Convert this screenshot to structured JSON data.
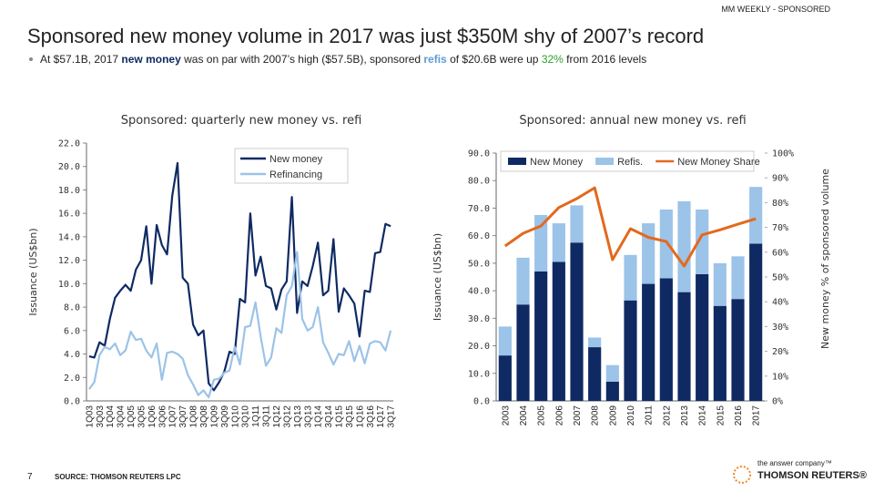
{
  "header": "MM WEEKLY - SPONSORED",
  "title": "Sponsored new money volume in 2017 was just $350M shy of 2007’s record",
  "bullet": [
    "At $57.1B, 2017 ",
    "new money",
    " was on par with 2007’s high ($57.5B), sponsored ",
    "refis",
    " of $20.6B were up ",
    "32%",
    " from 2016 levels"
  ],
  "chart_data": [
    {
      "type": "line",
      "title": "Sponsored: quarterly new money vs. refi",
      "y_label": "Issuance (US$bn)",
      "categories": [
        "1Q03",
        null,
        "3Q03",
        null,
        "1Q04",
        null,
        "3Q04",
        null,
        "1Q05",
        null,
        "3Q05",
        null,
        "1Q06",
        null,
        "3Q06",
        null,
        "1Q07",
        null,
        "3Q07",
        null,
        "1Q08",
        null,
        "3Q08",
        null,
        "1Q09",
        null,
        "3Q09",
        null,
        "1Q10",
        null,
        "3Q10",
        null,
        "1Q11",
        null,
        "3Q11",
        null,
        "1Q12",
        null,
        "3Q12",
        null,
        "1Q13",
        null,
        "3Q13",
        null,
        "1Q14",
        null,
        "3Q14",
        null,
        "1Q15",
        null,
        "3Q15",
        null,
        "1Q16",
        null,
        "3Q16",
        null,
        "1Q17",
        null,
        "3Q17"
      ],
      "series": [
        {
          "name": "New money",
          "color": "#0f2a63",
          "values": [
            3.8,
            3.7,
            5.0,
            4.7,
            7.0,
            8.8,
            9.4,
            9.9,
            9.4,
            11.2,
            12.0,
            14.9,
            10.0,
            15.0,
            13.3,
            12.5,
            17.5,
            20.3,
            10.5,
            10.0,
            6.5,
            5.6,
            6.0,
            1.5,
            0.9,
            1.6,
            2.5,
            4.2,
            4.0,
            8.7,
            8.4,
            16.0,
            10.7,
            12.3,
            9.8,
            9.6,
            7.8,
            9.5,
            10.2,
            17.4,
            7.5,
            10.2,
            9.8,
            11.5,
            13.5,
            9.0,
            9.4,
            13.8,
            7.6,
            9.6,
            9.0,
            8.3,
            5.5,
            9.4,
            9.3,
            12.6,
            12.7,
            15.1,
            14.9
          ]
        },
        {
          "name": "Refinancing",
          "color": "#9cc3e8",
          "values": [
            1.0,
            1.6,
            3.9,
            4.6,
            4.4,
            4.9,
            3.9,
            4.3,
            5.9,
            5.2,
            5.3,
            4.3,
            3.7,
            4.9,
            1.8,
            4.1,
            4.2,
            4.0,
            3.6,
            2.2,
            1.4,
            0.5,
            0.9,
            0.3,
            1.8,
            1.9,
            2.4,
            2.6,
            4.6,
            3.1,
            6.3,
            6.4,
            8.4,
            5.5,
            3.0,
            3.7,
            6.2,
            5.8,
            9.0,
            9.8,
            12.7,
            7.0,
            6.0,
            6.3,
            8.0,
            5.0,
            4.1,
            3.1,
            4.0,
            3.9,
            5.1,
            3.4,
            4.7,
            3.2,
            4.9,
            5.1,
            5.0,
            4.3,
            6.0
          ]
        }
      ],
      "ylim": [
        0,
        22
      ],
      "yticks": [
        {
          "value": 0,
          "label": "0.0"
        },
        {
          "value": 2,
          "label": "2.0"
        },
        {
          "value": 4,
          "label": "4.0"
        },
        {
          "value": 6,
          "label": "6.0"
        },
        {
          "value": 8,
          "label": "8.0"
        },
        {
          "value": 10,
          "label": "10.0"
        },
        {
          "value": 12,
          "label": "12.0"
        },
        {
          "value": 14,
          "label": "14.0"
        },
        {
          "value": 16,
          "label": "16.0"
        },
        {
          "value": 18,
          "label": "18.0"
        },
        {
          "value": 20,
          "label": "20.0"
        },
        {
          "value": 22,
          "label": "22.0"
        }
      ],
      "grid": false
    },
    {
      "type": "bar",
      "stacked": true,
      "title": "Sponsored: annual new money vs. refi",
      "y_label": "Issuance (US$bn)",
      "y2_label": "New money % of sponsored volume",
      "categories": [
        "2003",
        "2004",
        "2005",
        "2006",
        "2007",
        "2008",
        "2009",
        "2010",
        "2011",
        "2012",
        "2013",
        "2014",
        "2015",
        "2016",
        "2017"
      ],
      "series": [
        {
          "name": "New Money",
          "color": "#0f2a63",
          "values": [
            16.5,
            35,
            47,
            50.5,
            57.5,
            19.5,
            7,
            36.5,
            42.5,
            44.5,
            39.5,
            46,
            34.5,
            37,
            57.1
          ]
        },
        {
          "name": "Refis.",
          "color": "#9cc3e8",
          "values": [
            10.5,
            17,
            20.5,
            14,
            13.5,
            3.5,
            6,
            16.5,
            22,
            25,
            33,
            23.5,
            15.5,
            15.5,
            20.6
          ]
        },
        {
          "name": "New Money Share",
          "color": "#e3691c",
          "axis": "y2",
          "values": [
            62.5,
            67.6,
            70.6,
            78,
            81.6,
            86,
            57,
            69.5,
            66,
            64.3,
            54.4,
            67,
            69,
            71.3,
            73.5
          ]
        }
      ],
      "ylim": [
        0,
        90
      ],
      "yticks": [
        {
          "value": 0,
          "label": "0.0"
        },
        {
          "value": 10,
          "label": "10.0"
        },
        {
          "value": 20,
          "label": "20.0"
        },
        {
          "value": 30,
          "label": "30.0"
        },
        {
          "value": 40,
          "label": "40.0"
        },
        {
          "value": 50,
          "label": "50.0"
        },
        {
          "value": 60,
          "label": "60.0"
        },
        {
          "value": 70,
          "label": "70.0"
        },
        {
          "value": 80,
          "label": "80.0"
        },
        {
          "value": 90,
          "label": "90.0"
        }
      ],
      "y2lim": [
        0,
        100
      ],
      "y2ticks": [
        {
          "value": 0,
          "label": "0%"
        },
        {
          "value": 10,
          "label": "10%"
        },
        {
          "value": 20,
          "label": "20%"
        },
        {
          "value": 30,
          "label": "30%"
        },
        {
          "value": 40,
          "label": "40%"
        },
        {
          "value": 50,
          "label": "50%"
        },
        {
          "value": 60,
          "label": "60%"
        },
        {
          "value": 70,
          "label": "70%"
        },
        {
          "value": 80,
          "label": "80%"
        },
        {
          "value": 90,
          "label": "90%"
        },
        {
          "value": 100,
          "label": "100%"
        }
      ],
      "grid": false
    }
  ],
  "footer": {
    "page": "7",
    "source": "SOURCE: THOMSON REUTERS LPC",
    "tagline": "the answer company™",
    "brand": "THOMSON REUTERS®"
  }
}
